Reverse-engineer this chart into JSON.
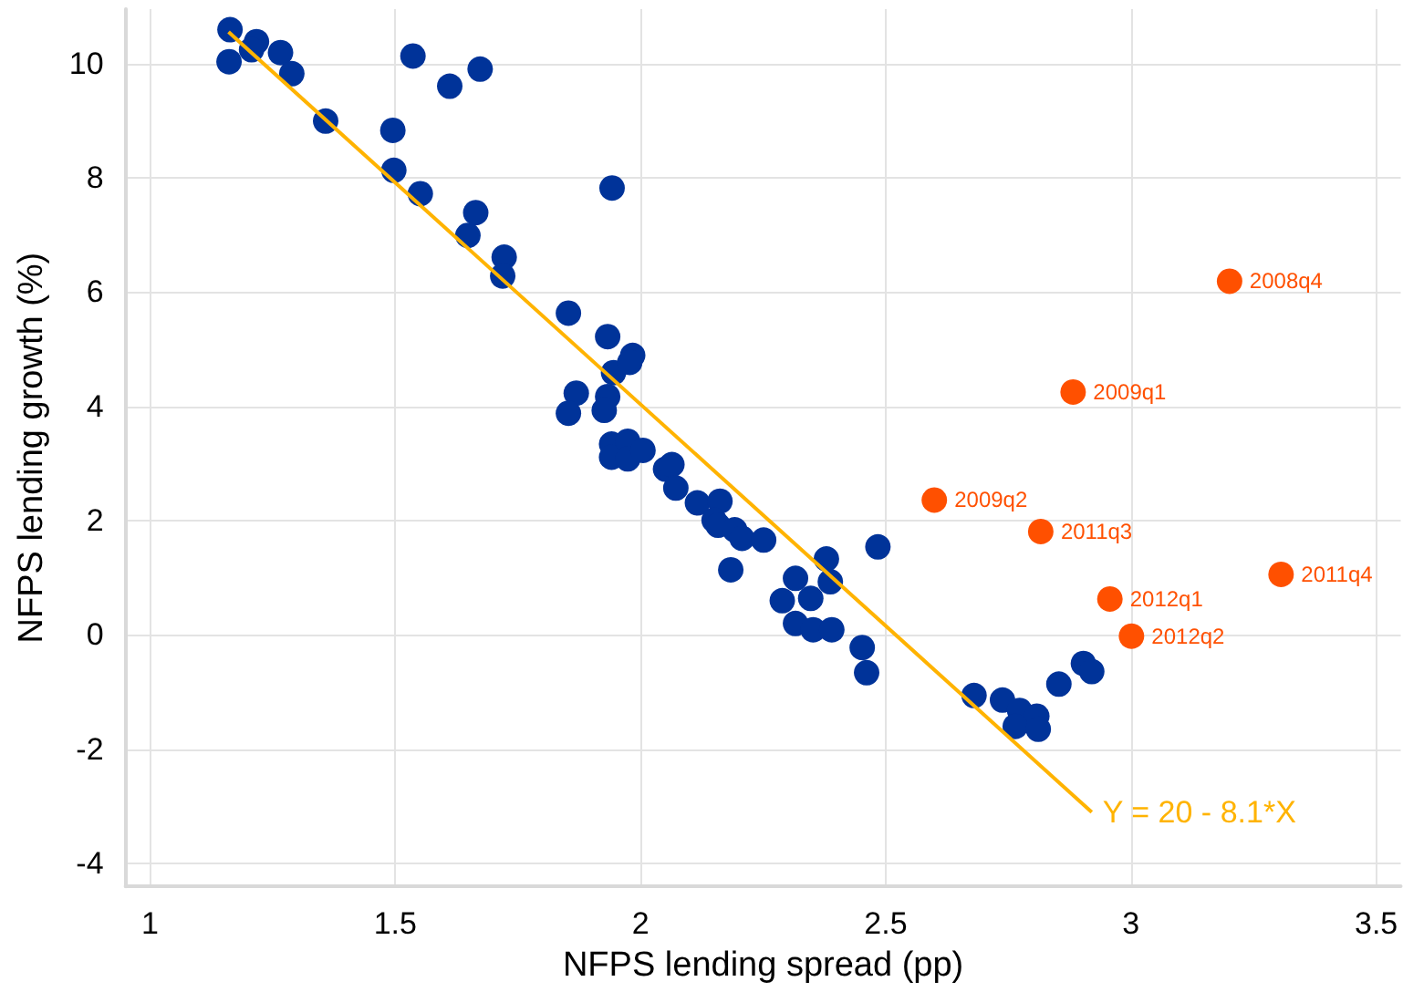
{
  "chart_data": {
    "type": "scatter",
    "xlabel": "NFPS lending spread (pp)",
    "ylabel": "NFPS lending growth (%)",
    "xlim": [
      0.95,
      3.55
    ],
    "xticks": [
      1,
      1.5,
      2,
      2.5,
      3,
      3.5
    ],
    "ylim": [
      -4.4,
      10.95
    ],
    "yticks": [
      -4,
      -2,
      0,
      2,
      4,
      6,
      8,
      10
    ],
    "grid": true,
    "marker": "circle",
    "series": [
      {
        "color": "#003399",
        "x": [
          1.163,
          1.161,
          1.217,
          1.207,
          1.266,
          1.289,
          1.358,
          1.536,
          1.611,
          1.673,
          1.495,
          1.497,
          1.551,
          1.942,
          1.664,
          1.648,
          1.722,
          1.719,
          1.853,
          1.933,
          1.945,
          1.984,
          1.978,
          1.869,
          1.853,
          1.933,
          1.926,
          1.941,
          1.941,
          1.974,
          1.974,
          2.005,
          2.051,
          2.064,
          2.072,
          2.116,
          2.162,
          2.15,
          2.158,
          2.192,
          2.207,
          2.184,
          2.251,
          2.379,
          2.484,
          2.316,
          2.387,
          2.347,
          2.289,
          2.316,
          2.352,
          2.39,
          2.452,
          2.461,
          2.68,
          2.738,
          2.773,
          2.808,
          2.764,
          2.811,
          2.853,
          2.903,
          2.92
        ],
        "values": [
          10.59,
          10.03,
          10.38,
          10.24,
          10.19,
          9.82,
          8.99,
          10.13,
          9.6,
          9.9,
          8.83,
          8.13,
          7.72,
          7.82,
          7.39,
          6.99,
          6.61,
          6.28,
          5.63,
          5.22,
          4.59,
          4.89,
          4.77,
          4.23,
          3.88,
          4.17,
          3.93,
          3.34,
          3.11,
          3.39,
          3.08,
          3.23,
          2.9,
          2.98,
          2.57,
          2.31,
          2.34,
          2.01,
          1.92,
          1.84,
          1.69,
          1.14,
          1.66,
          1.33,
          1.54,
          0.99,
          0.93,
          0.64,
          0.6,
          0.2,
          0.09,
          0.09,
          -0.22,
          -0.66,
          -1.06,
          -1.14,
          -1.32,
          -1.42,
          -1.6,
          -1.65,
          -0.86,
          -0.5,
          -0.64
        ]
      },
      {
        "color": "#ff5000",
        "x": [
          3.201,
          2.882,
          2.599,
          2.816,
          3.306,
          2.957,
          3.001
        ],
        "values": [
          6.19,
          4.25,
          2.36,
          1.81,
          1.06,
          0.63,
          -0.02
        ],
        "value_labels": [
          "2008q4",
          "2009q1",
          "2009q2",
          "2011q3",
          "2011q4",
          "2012q1",
          "2012q2"
        ]
      },
      {
        "type": "line",
        "color": "#ffb300",
        "marker": "none",
        "line_style": "solid",
        "x": [
          1.16,
          2.92
        ],
        "values": [
          10.55,
          -3.1
        ]
      }
    ],
    "annotations": [
      {
        "text": "Y = 20 - 8.1*X",
        "x": 2.92,
        "y": -3.1
      }
    ]
  }
}
